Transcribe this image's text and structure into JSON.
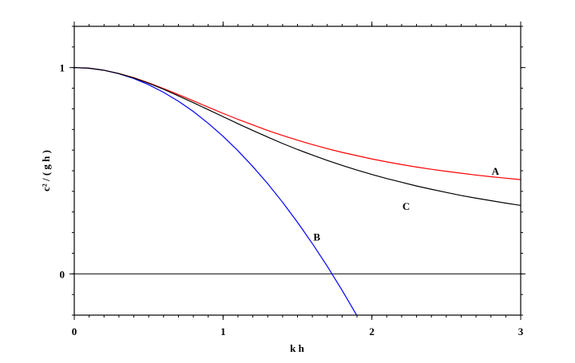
{
  "chart_data": {
    "type": "line",
    "xlabel": "k h",
    "ylabel": "c² / ( g h )",
    "xlim": [
      0,
      3
    ],
    "ylim": [
      -0.2,
      1.2
    ],
    "xticks": [
      0,
      1,
      2,
      3
    ],
    "yticks": [
      0,
      1
    ],
    "minor_tick_step": 0.1,
    "zero_line": true,
    "x": [
      0,
      0.1,
      0.2,
      0.3,
      0.4,
      0.5,
      0.6,
      0.7,
      0.8,
      0.9,
      1.0,
      1.1,
      1.2,
      1.3,
      1.4,
      1.5,
      1.6,
      1.7,
      1.8,
      1.9,
      2.0,
      2.1,
      2.2,
      2.3,
      2.4,
      2.5,
      2.6,
      2.7,
      2.8,
      2.9,
      3.0
    ],
    "series": [
      {
        "name": "A",
        "color": "#ff0000",
        "values": [
          1,
          0.997,
          0.987,
          0.971,
          0.951,
          0.926,
          0.898,
          0.869,
          0.839,
          0.808,
          0.778,
          0.749,
          0.722,
          0.695,
          0.671,
          0.648,
          0.627,
          0.607,
          0.589,
          0.573,
          0.557,
          0.543,
          0.53,
          0.518,
          0.507,
          0.497,
          0.488,
          0.479,
          0.471,
          0.464,
          0.457
        ]
      },
      {
        "name": "B",
        "color": "#0000ff",
        "values": [
          1,
          0.997,
          0.987,
          0.97,
          0.947,
          0.917,
          0.88,
          0.837,
          0.787,
          0.73,
          0.667,
          0.597,
          0.52,
          0.437,
          0.347,
          0.25,
          0.147,
          0.037,
          -0.08,
          -0.203,
          null,
          null,
          null,
          null,
          null,
          null,
          null,
          null,
          null,
          null,
          null
        ]
      },
      {
        "name": "C",
        "color": "#000000",
        "values": [
          1,
          0.997,
          0.987,
          0.971,
          0.95,
          0.924,
          0.895,
          0.863,
          0.83,
          0.796,
          0.762,
          0.728,
          0.695,
          0.663,
          0.632,
          0.603,
          0.576,
          0.55,
          0.526,
          0.503,
          0.482,
          0.462,
          0.444,
          0.426,
          0.41,
          0.395,
          0.38,
          0.367,
          0.355,
          0.343,
          0.332
        ]
      }
    ]
  }
}
